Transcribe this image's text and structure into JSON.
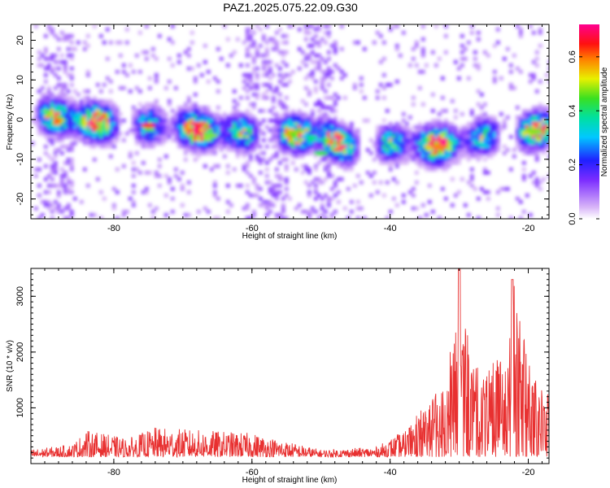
{
  "title": "PAZ1.2025.075.22.09.G30",
  "chart_data": [
    {
      "type": "heatmap",
      "xlabel": "Height of straight line (km)",
      "ylabel": "Frequency (Hz)",
      "xlim": [
        -92,
        -17
      ],
      "ylim": [
        -25,
        24
      ],
      "xticks": [
        -80,
        -60,
        -40,
        -20
      ],
      "yticks": [
        -20,
        -10,
        0,
        10,
        20
      ],
      "colorbar": {
        "label": "Normalized spectral amplitude",
        "range": [
          0.0,
          0.72
        ],
        "ticks": [
          0.0,
          0.2,
          0.4,
          0.6
        ],
        "tick_labels": [
          "0.0",
          "0.2",
          "0.4",
          "0.6"
        ],
        "colormap": "rainbow (white, violet, blue, cyan, green, yellow, red, magenta)"
      },
      "ridge": {
        "x": [
          -91,
          -86,
          -80,
          -76,
          -72,
          -66,
          -60,
          -55,
          -50,
          -46,
          -42,
          -38,
          -34,
          -30,
          -26,
          -22,
          -18
        ],
        "y": [
          1.5,
          0,
          -1,
          -1.5,
          -1.5,
          -3,
          -3.5,
          -3.5,
          -4,
          -7,
          -6,
          -6,
          -6.5,
          -6,
          -4,
          -3.5,
          -2.5
        ]
      }
    },
    {
      "type": "line",
      "xlabel": "Height of straight line (km)",
      "ylabel": "SNR (10 * v/v)",
      "xlim": [
        -92,
        -17
      ],
      "ylim": [
        0,
        3500
      ],
      "xticks": [
        -80,
        -60,
        -40,
        -20
      ],
      "yticks": [
        1000,
        2000,
        3000
      ],
      "series": [
        {
          "color": "#e83030",
          "envelope": {
            "x": [
              -92,
              -86,
              -84,
              -78,
              -74,
              -60,
              -50,
              -42,
              -38,
              -36,
              -32,
              -30,
              -28,
              -26,
              -23,
              -22,
              -20,
              -18,
              -17
            ],
            "y": [
              250,
              350,
              600,
              450,
              650,
              550,
              250,
              300,
              600,
              900,
              1500,
              2800,
              1800,
              1600,
              2000,
              3100,
              1800,
              1400,
              1200
            ]
          }
        }
      ]
    }
  ]
}
